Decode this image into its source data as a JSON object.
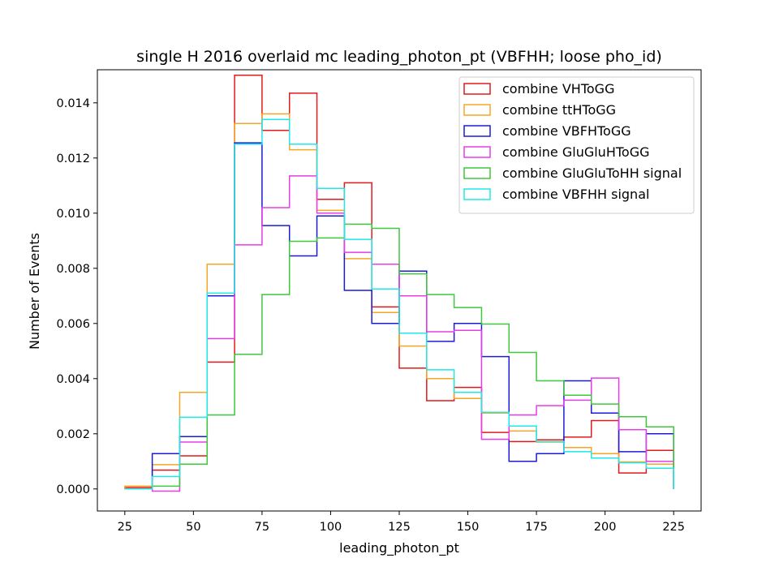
{
  "chart_data": {
    "type": "step-histogram",
    "title": "single H 2016 overlaid mc leading_photon_pt (VBFHH; loose pho_id)",
    "xlabel": "leading_photon_pt",
    "ylabel": "Number of Events",
    "xlim": [
      15,
      235
    ],
    "ylim": [
      -0.0008,
      0.0152
    ],
    "xticks": [
      25,
      50,
      75,
      100,
      125,
      150,
      175,
      200,
      225
    ],
    "xtick_labels": [
      "25",
      "50",
      "75",
      "100",
      "125",
      "150",
      "175",
      "200",
      "225"
    ],
    "yticks": [
      0.0,
      0.002,
      0.004,
      0.006,
      0.008,
      0.01,
      0.012,
      0.014
    ],
    "ytick_labels": [
      "0.000",
      "0.002",
      "0.004",
      "0.006",
      "0.008",
      "0.010",
      "0.012",
      "0.014"
    ],
    "grid": false,
    "legend_position": "top-right",
    "bin_edges": [
      25,
      35,
      45,
      55,
      65,
      75,
      85,
      95,
      105,
      115,
      125,
      135,
      145,
      155,
      165,
      175,
      185,
      195,
      205,
      215,
      225
    ],
    "series": [
      {
        "name": "combine VHToGG",
        "color": "#e31a1c",
        "values": [
          5e-05,
          0.00068,
          0.0012,
          0.0046,
          0.015,
          0.013,
          0.01435,
          0.0105,
          0.0111,
          0.0066,
          0.00438,
          0.0032,
          0.00368,
          0.00205,
          0.00172,
          0.00178,
          0.00188,
          0.00248,
          0.00058,
          0.0014
        ]
      },
      {
        "name": "combine ttHToGG",
        "color": "#f5a623",
        "values": [
          0.0001,
          0.00088,
          0.0035,
          0.00815,
          0.01325,
          0.0136,
          0.0123,
          0.0101,
          0.00835,
          0.0064,
          0.00518,
          0.004,
          0.00328,
          0.00275,
          0.0021,
          0.0017,
          0.0015,
          0.00128,
          0.00098,
          0.0009
        ]
      },
      {
        "name": "combine VBFHToGG",
        "color": "#1c1cd6",
        "values": [
          0.0,
          0.00128,
          0.0019,
          0.007,
          0.01255,
          0.00955,
          0.00845,
          0.0099,
          0.0072,
          0.006,
          0.0079,
          0.00535,
          0.006,
          0.0048,
          0.001,
          0.00128,
          0.00392,
          0.00275,
          0.00135,
          0.002
        ]
      },
      {
        "name": "combine GluGluHToGG",
        "color": "#e83ce8",
        "values": [
          0.0,
          -8e-05,
          0.0017,
          0.00545,
          0.00885,
          0.0102,
          0.01135,
          0.01,
          0.00858,
          0.00815,
          0.007,
          0.0057,
          0.00575,
          0.0018,
          0.00268,
          0.00302,
          0.00322,
          0.00402,
          0.00215,
          0.001
        ]
      },
      {
        "name": "combine GluGluToHH signal",
        "color": "#3cc93c",
        "values": [
          0.0,
          0.0001,
          0.0009,
          0.00268,
          0.00488,
          0.00705,
          0.00898,
          0.0091,
          0.0096,
          0.00945,
          0.0078,
          0.00705,
          0.00658,
          0.00598,
          0.00495,
          0.00392,
          0.0034,
          0.00308,
          0.00262,
          0.00225
        ]
      },
      {
        "name": "combine VBFHH signal",
        "color": "#1ee8e8",
        "values": [
          0.0,
          0.00045,
          0.0026,
          0.0071,
          0.0125,
          0.0134,
          0.0125,
          0.0109,
          0.00905,
          0.00725,
          0.00565,
          0.00432,
          0.0035,
          0.00278,
          0.00228,
          0.00172,
          0.00135,
          0.00112,
          0.00095,
          0.00075
        ]
      }
    ]
  }
}
